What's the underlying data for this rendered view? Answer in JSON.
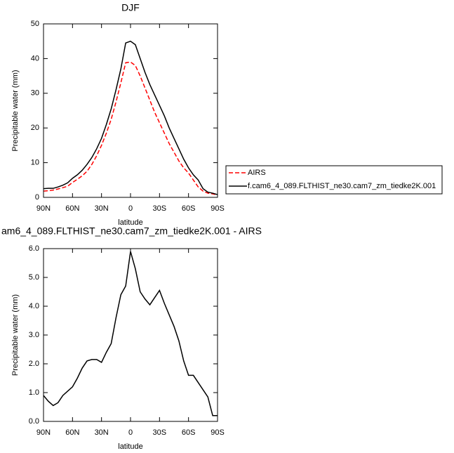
{
  "chart_data": [
    {
      "type": "line",
      "title": "DJF",
      "x_label": "latitude",
      "y_label": "Precipitable water (mm)",
      "x": [
        90,
        85,
        80,
        75,
        70,
        65,
        60,
        55,
        50,
        45,
        40,
        35,
        30,
        25,
        20,
        15,
        10,
        5,
        0,
        -5,
        -10,
        -15,
        -20,
        -25,
        -30,
        -35,
        -40,
        -45,
        -50,
        -55,
        -60,
        -65,
        -70,
        -75,
        -80,
        -85,
        -90
      ],
      "xlim": [
        90,
        -90
      ],
      "xticks": [
        {
          "value": 90,
          "label": "90N"
        },
        {
          "value": 60,
          "label": "60N"
        },
        {
          "value": 30,
          "label": "30N"
        },
        0,
        {
          "value": -30,
          "label": "30S"
        },
        {
          "value": -60,
          "label": "60S"
        },
        {
          "value": -90,
          "label": "90S"
        }
      ],
      "ylim": [
        0,
        50
      ],
      "yticks": [
        0,
        10,
        20,
        30,
        40,
        50
      ],
      "legend": "outside-right",
      "series": [
        {
          "name": "AIRS",
          "color": "#ff0000",
          "linestyle": "dashed",
          "values": [
            1.8,
            1.9,
            2.1,
            2.4,
            2.8,
            3.2,
            4.3,
            5.2,
            6.2,
            7.5,
            9.5,
            12,
            15,
            18.5,
            22.5,
            27.5,
            33,
            38.8,
            39,
            38,
            35,
            31.5,
            28,
            24.5,
            21.5,
            18.5,
            15.5,
            13,
            10.5,
            8.5,
            7,
            5,
            3,
            1.8,
            1.2,
            1.0,
            0.7
          ]
        },
        {
          "name": "f.cam6_4_089.FLTHIST_ne30.cam7_zm_tiedke2K.001",
          "color": "#000000",
          "linestyle": "solid",
          "values": [
            2.5,
            2.6,
            2.6,
            3.0,
            3.5,
            4.2,
            5.5,
            6.5,
            7.8,
            9.5,
            11.5,
            14,
            17,
            21,
            25.5,
            31,
            37,
            44.5,
            45,
            44,
            40,
            36,
            32.5,
            29.5,
            26.5,
            23.5,
            20,
            17,
            14,
            11,
            8.5,
            6.5,
            5,
            2.5,
            1.5,
            1.2,
            0.8
          ]
        }
      ]
    },
    {
      "type": "line",
      "title": "am6_4_089.FLTHIST_ne30.cam7_zm_tiedke2K.001 - AIRS",
      "x_label": "latitude",
      "y_label": "Precipitable water (mm)",
      "x": [
        90,
        85,
        80,
        75,
        70,
        65,
        60,
        55,
        50,
        45,
        40,
        35,
        30,
        25,
        20,
        15,
        10,
        5,
        0,
        -5,
        -10,
        -15,
        -20,
        -25,
        -30,
        -35,
        -40,
        -45,
        -50,
        -55,
        -60,
        -65,
        -70,
        -75,
        -80,
        -85,
        -90
      ],
      "xlim": [
        90,
        -90
      ],
      "xticks": [
        {
          "value": 90,
          "label": "90N"
        },
        {
          "value": 60,
          "label": "60N"
        },
        {
          "value": 30,
          "label": "30N"
        },
        0,
        {
          "value": -30,
          "label": "30S"
        },
        {
          "value": -60,
          "label": "60S"
        },
        {
          "value": -90,
          "label": "90S"
        }
      ],
      "ylim": [
        0,
        6
      ],
      "yticks": [
        {
          "value": 0,
          "label": "0.0"
        },
        {
          "value": 1,
          "label": "1.0"
        },
        {
          "value": 2,
          "label": "2.0"
        },
        {
          "value": 3,
          "label": "3.0"
        },
        {
          "value": 4,
          "label": "4.0"
        },
        {
          "value": 5,
          "label": "5.0"
        },
        {
          "value": 6,
          "label": "6.0"
        }
      ],
      "series": [
        {
          "color": "#000000",
          "linestyle": "solid",
          "values": [
            0.9,
            0.7,
            0.55,
            0.65,
            0.9,
            1.05,
            1.2,
            1.5,
            1.85,
            2.1,
            2.15,
            2.15,
            2.05,
            2.4,
            2.7,
            3.6,
            4.4,
            4.7,
            5.9,
            5.3,
            4.5,
            4.25,
            4.05,
            4.3,
            4.55,
            4.1,
            3.7,
            3.3,
            2.8,
            2.1,
            1.6,
            1.6,
            1.35,
            1.1,
            0.85,
            0.2,
            0.2
          ]
        }
      ]
    }
  ]
}
